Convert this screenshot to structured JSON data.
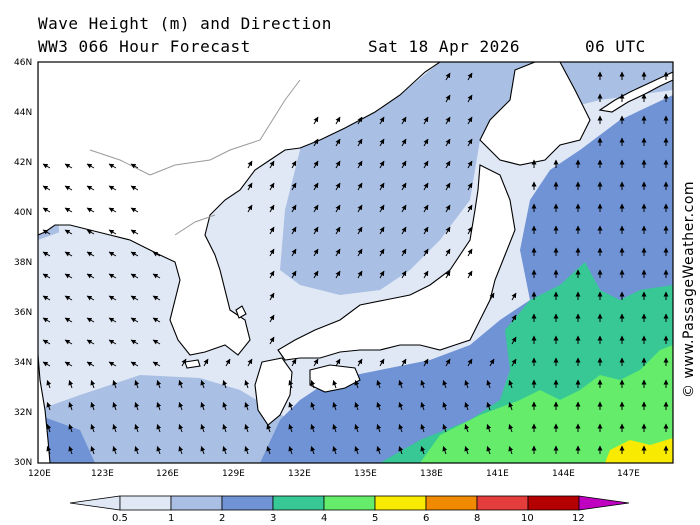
{
  "header": {
    "title": "Wave Height (m) and Direction",
    "model": "WW3 066 Hour Forecast",
    "date": "Sat 18 Apr 2026",
    "time": "06 UTC"
  },
  "map": {
    "lat_labels": [
      "46N",
      "44N",
      "42N",
      "40N",
      "38N",
      "36N",
      "34N",
      "32N",
      "30N"
    ],
    "lon_labels": [
      "120E",
      "123E",
      "126E",
      "129E",
      "132E",
      "135E",
      "138E",
      "141E",
      "144E",
      "147E"
    ],
    "colors": {
      "c0": "#e0e8f6",
      "c1": "#a9bfe3",
      "c2": "#6f93d5",
      "c3": "#37c896",
      "c4": "#64ec6a",
      "c5": "#f8ea00",
      "land": "#ffffff",
      "coast": "#000000",
      "border": "#9a9a9a"
    },
    "arrow_direction_note": ""
  },
  "legend": {
    "labels": [
      "0.5",
      "1",
      "2",
      "3",
      "4",
      "5",
      "6",
      "8",
      "10",
      "12"
    ],
    "colors": [
      "#e0e8f6",
      "#a9bfe3",
      "#6f93d5",
      "#37c896",
      "#64ec6a",
      "#f8ea00",
      "#f08a00",
      "#e53c3c",
      "#b40000",
      "#c000c0"
    ]
  },
  "credit": "© www.PassageWeather.com"
}
